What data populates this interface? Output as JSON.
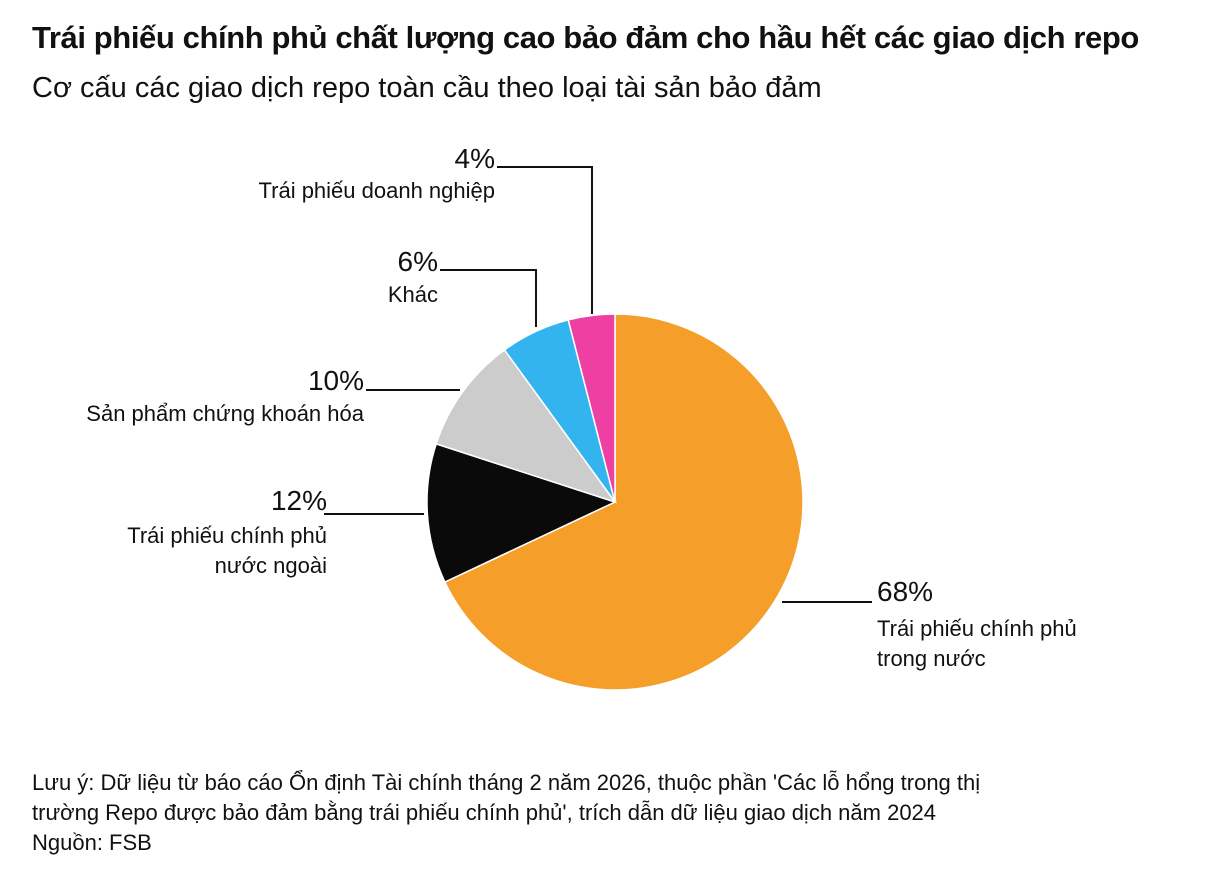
{
  "title": "Trái phiếu chính phủ chất lượng cao bảo đảm cho hầu hết các giao dịch repo",
  "subtitle": "Cơ cấu các giao dịch repo toàn cầu theo loại tài sản bảo đảm",
  "chart_data": {
    "type": "pie",
    "slices": [
      {
        "label_lines": [
          "Trái phiếu chính phủ",
          "trong nước"
        ],
        "percent_label": "68%",
        "value": 68,
        "color": "#F59E2A"
      },
      {
        "label_lines": [
          "Trái phiếu chính phủ",
          "nước ngoài"
        ],
        "percent_label": "12%",
        "value": 12,
        "color": "#0A0A0A"
      },
      {
        "label_lines": [
          "Sản phẩm chứng khoán hóa"
        ],
        "percent_label": "10%",
        "value": 10,
        "color": "#CCCCCC"
      },
      {
        "label_lines": [
          "Khác"
        ],
        "percent_label": "6%",
        "value": 6,
        "color": "#33B4EE"
      },
      {
        "label_lines": [
          "Trái phiếu doanh nghiệp"
        ],
        "percent_label": "4%",
        "value": 4,
        "color": "#EE3FA3"
      }
    ]
  },
  "footer": {
    "note_line1": "Lưu ý: Dữ liệu từ báo cáo Ổn định Tài chính tháng 2 năm 2026, thuộc phần 'Các lỗ hổng trong thị",
    "note_line2": "trường Repo được bảo đảm bằng trái phiếu chính phủ', trích dẫn dữ liệu giao dịch năm 2024",
    "source": "Nguồn: FSB"
  }
}
